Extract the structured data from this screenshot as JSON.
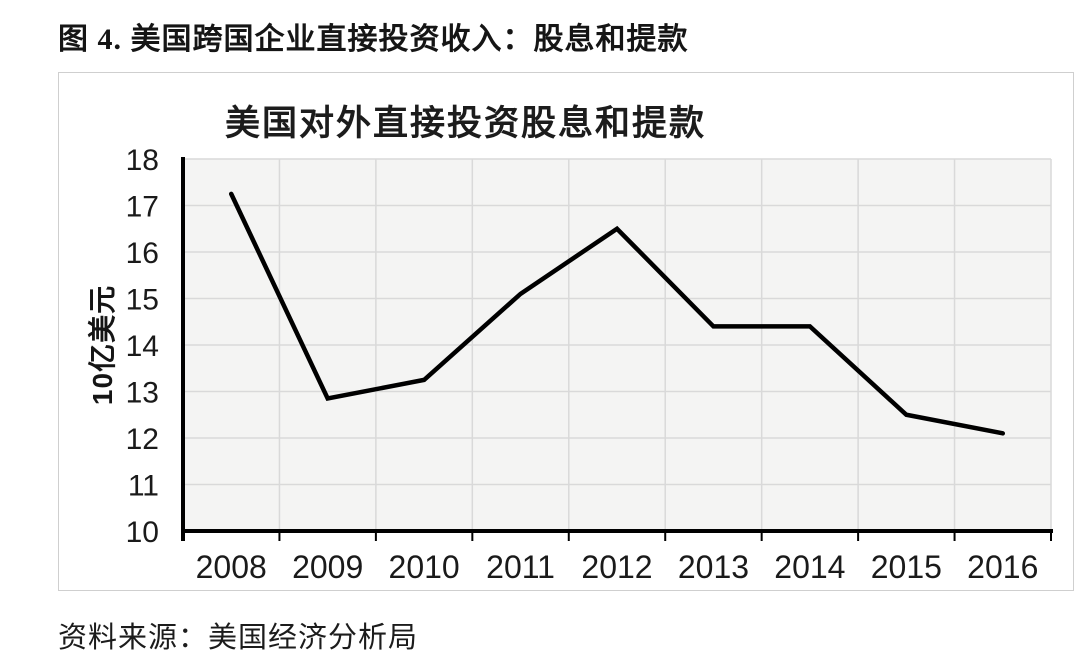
{
  "page": {
    "heading": "图 4. 美国跨国企业直接投资收入：股息和提款",
    "source": "资料来源：美国经济分析局"
  },
  "chart_data": {
    "type": "line",
    "title": "美国对外直接投资股息和提款",
    "xlabel": "",
    "ylabel": "10亿美元",
    "categories": [
      "2008",
      "2009",
      "2010",
      "2011",
      "2012",
      "2013",
      "2014",
      "2015",
      "2016"
    ],
    "series": [
      {
        "name": "美国对外直接投资股息和提款",
        "values": [
          17.25,
          12.85,
          13.25,
          15.1,
          16.5,
          14.4,
          14.4,
          12.5,
          12.1
        ]
      }
    ],
    "ylim": [
      10,
      18
    ],
    "yticks": [
      10,
      11,
      12,
      13,
      14,
      15,
      16,
      17,
      18
    ],
    "grid": true,
    "legend_position": "none",
    "line_color": "#000000",
    "axis_color": "#000000",
    "tick_label_color": "#1a1a1a",
    "plot_bg": "#f4f4f3",
    "grid_color": "#d9d9d9"
  }
}
